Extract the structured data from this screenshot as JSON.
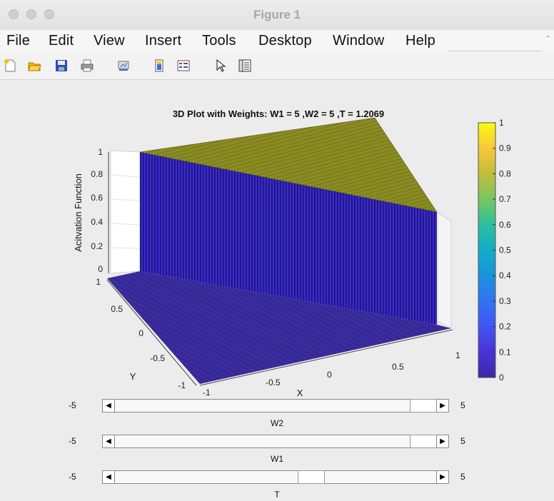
{
  "window": {
    "title": "Figure 1"
  },
  "menu": [
    "File",
    "Edit",
    "View",
    "Insert",
    "Tools",
    "Desktop",
    "Window",
    "Help"
  ],
  "toolbar_icons": [
    "new-figure-icon",
    "open-file-icon",
    "save-icon",
    "print-icon",
    "link-plot-icon",
    "colorbar-icon",
    "legend-icon",
    "pointer-icon",
    "property-inspector-icon"
  ],
  "plot": {
    "title": "3D Plot with Weights: W1 = 5 ,W2 = 5 ,T = 1.2069",
    "zlabel": "Acitvation Function",
    "xlabel": "X",
    "ylabel": "Y",
    "z_ticks": [
      "0",
      "0.2",
      "0.4",
      "0.6",
      "0.8",
      "1"
    ],
    "x_ticks": [
      "-1",
      "-0.5",
      "0",
      "0.5",
      "1"
    ],
    "y_ticks": [
      "-1",
      "-0.5",
      "0",
      "0.5",
      "1"
    ],
    "colorbar_ticks": [
      "0",
      "0.1",
      "0.2",
      "0.3",
      "0.4",
      "0.5",
      "0.6",
      "0.7",
      "0.8",
      "0.9",
      "1"
    ],
    "colors": {
      "low": "#3e26a8",
      "high": "#f9fb0e",
      "top_surface": "#8a8b22",
      "wall": "#3a2ad0"
    }
  },
  "chart_data": {
    "type": "surface",
    "title": "3D Plot with Weights: W1 = 5 ,W2 = 5 ,T = 1.2069",
    "xlabel": "X",
    "ylabel": "Y",
    "zlabel": "Acitvation Function",
    "xlim": [
      -1,
      1
    ],
    "ylim": [
      -1,
      1
    ],
    "zlim": [
      0,
      1
    ],
    "surface": "z = 1 if 5*x + 5*y >= 1.2069 else 0",
    "colormap": "parula",
    "clim": [
      0,
      1
    ]
  },
  "sliders": [
    {
      "label": "W2",
      "min": "-5",
      "max": "5",
      "value": 5
    },
    {
      "label": "W1",
      "min": "-5",
      "max": "5",
      "value": 5
    },
    {
      "label": "T",
      "min": "-5",
      "max": "5",
      "value": 1.2069
    }
  ]
}
